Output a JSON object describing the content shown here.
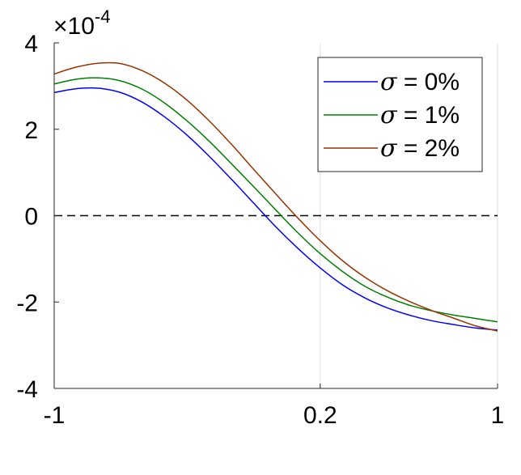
{
  "chart_data": {
    "type": "line",
    "title": "",
    "xlabel": "",
    "ylabel": "",
    "xlim": [
      -1,
      1
    ],
    "ylim": [
      -4,
      4
    ],
    "y_multiplier_label": {
      "base": "×10",
      "exponent": "-4"
    },
    "x_ticks": [
      {
        "value": -1,
        "label": "-1"
      },
      {
        "value": 0.2,
        "label": "0.2"
      },
      {
        "value": 1,
        "label": "1"
      }
    ],
    "y_ticks": [
      {
        "value": -4,
        "label": "-4"
      },
      {
        "value": -2,
        "label": "-2"
      },
      {
        "value": 0,
        "label": "0"
      },
      {
        "value": 2,
        "label": "2"
      },
      {
        "value": 4,
        "label": "4"
      }
    ],
    "vertical_gridlines_at": [
      0.2,
      1
    ],
    "reference_line": {
      "y": 0,
      "style": "dashed",
      "color": "#000000"
    },
    "legend": {
      "position": "top-right"
    },
    "series": [
      {
        "name": "σ = 0%",
        "legend_symbol": "σ",
        "legend_text": " = 0%",
        "color": "#0000ff",
        "x": [
          -1,
          -0.9,
          -0.8,
          -0.7,
          -0.6,
          -0.5,
          -0.4,
          -0.3,
          -0.2,
          -0.1,
          0.0,
          0.1,
          0.2,
          0.3,
          0.4,
          0.5,
          0.6,
          0.7,
          0.8,
          0.9,
          1.0
        ],
        "y": [
          2.85,
          2.94,
          2.95,
          2.85,
          2.62,
          2.28,
          1.86,
          1.37,
          0.84,
          0.29,
          -0.26,
          -0.76,
          -1.21,
          -1.6,
          -1.9,
          -2.13,
          -2.3,
          -2.43,
          -2.52,
          -2.6,
          -2.65
        ]
      },
      {
        "name": "σ = 1%",
        "legend_symbol": "σ",
        "legend_text": " = 1%",
        "color": "#008000",
        "x": [
          -1,
          -0.9,
          -0.8,
          -0.7,
          -0.6,
          -0.5,
          -0.4,
          -0.3,
          -0.2,
          -0.1,
          0.0,
          0.1,
          0.2,
          0.3,
          0.4,
          0.5,
          0.6,
          0.7,
          0.8,
          0.9,
          1.0
        ],
        "y": [
          3.05,
          3.16,
          3.19,
          3.12,
          2.92,
          2.6,
          2.19,
          1.72,
          1.2,
          0.67,
          0.13,
          -0.4,
          -0.88,
          -1.29,
          -1.63,
          -1.88,
          -2.07,
          -2.2,
          -2.3,
          -2.38,
          -2.46
        ]
      },
      {
        "name": "σ = 2%",
        "legend_symbol": "σ",
        "legend_text": " = 2%",
        "color": "#993300",
        "x": [
          -1,
          -0.9,
          -0.8,
          -0.7,
          -0.6,
          -0.5,
          -0.4,
          -0.3,
          -0.2,
          -0.1,
          0.0,
          0.1,
          0.2,
          0.3,
          0.4,
          0.5,
          0.6,
          0.7,
          0.8,
          0.9,
          1.0
        ],
        "y": [
          3.28,
          3.44,
          3.53,
          3.52,
          3.35,
          3.06,
          2.67,
          2.19,
          1.65,
          1.07,
          0.5,
          -0.06,
          -0.58,
          -1.04,
          -1.42,
          -1.73,
          -1.98,
          -2.19,
          -2.37,
          -2.55,
          -2.67
        ]
      }
    ]
  }
}
